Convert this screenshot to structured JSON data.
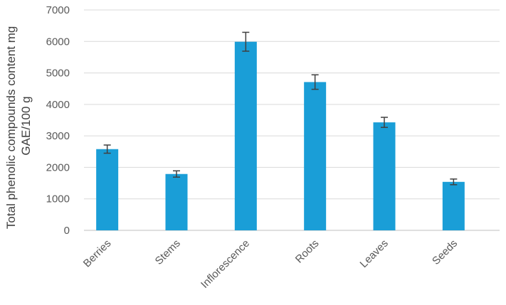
{
  "chart_data": {
    "type": "bar",
    "categories": [
      "Berries",
      "Stems",
      "Inflorescence",
      "Roots",
      "Leaves",
      "Seeds"
    ],
    "values": [
      2580,
      1790,
      5990,
      4710,
      3430,
      1540
    ],
    "errors": [
      130,
      100,
      300,
      230,
      160,
      90
    ],
    "ylabel_line1": "Total phenolic compounds content mg",
    "ylabel_line2": "GAE/100 g",
    "xlabel": "",
    "ylim": [
      0,
      7000
    ],
    "yticks": [
      "0",
      "1000",
      "2000",
      "3000",
      "4000",
      "5000",
      "6000",
      "7000"
    ],
    "grid": true,
    "legend": "none",
    "bar_color": "#1a9ed7"
  }
}
